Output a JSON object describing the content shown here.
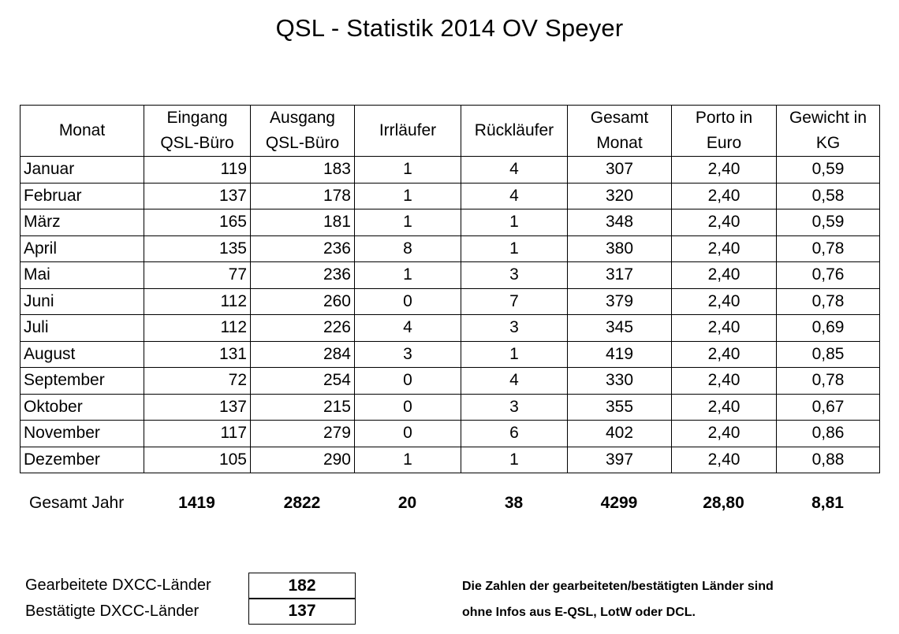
{
  "title": "QSL - Statistik  2014 OV Speyer",
  "table": {
    "headers": [
      [
        "Monat"
      ],
      [
        "Eingang",
        "QSL-Büro"
      ],
      [
        "Ausgang",
        "QSL-Büro"
      ],
      [
        "Irrläufer"
      ],
      [
        "Rückläufer"
      ],
      [
        "Gesamt",
        "Monat"
      ],
      [
        "Porto in",
        "Euro"
      ],
      [
        "Gewicht in",
        "KG"
      ]
    ],
    "rows": [
      [
        "Januar",
        "119",
        "183",
        "1",
        "4",
        "307",
        "2,40",
        "0,59"
      ],
      [
        "Februar",
        "137",
        "178",
        "1",
        "4",
        "320",
        "2,40",
        "0,58"
      ],
      [
        "März",
        "165",
        "181",
        "1",
        "1",
        "348",
        "2,40",
        "0,59"
      ],
      [
        "April",
        "135",
        "236",
        "8",
        "1",
        "380",
        "2,40",
        "0,78"
      ],
      [
        "Mai",
        "77",
        "236",
        "1",
        "3",
        "317",
        "2,40",
        "0,76"
      ],
      [
        "Juni",
        "112",
        "260",
        "0",
        "7",
        "379",
        "2,40",
        "0,78"
      ],
      [
        "Juli",
        "112",
        "226",
        "4",
        "3",
        "345",
        "2,40",
        "0,69"
      ],
      [
        "August",
        "131",
        "284",
        "3",
        "1",
        "419",
        "2,40",
        "0,85"
      ],
      [
        "September",
        "72",
        "254",
        "0",
        "4",
        "330",
        "2,40",
        "0,78"
      ],
      [
        "Oktober",
        "137",
        "215",
        "0",
        "3",
        "355",
        "2,40",
        "0,67"
      ],
      [
        "November",
        "117",
        "279",
        "0",
        "6",
        "402",
        "2,40",
        "0,86"
      ],
      [
        "Dezember",
        "105",
        "290",
        "1",
        "1",
        "397",
        "2,40",
        "0,88"
      ]
    ]
  },
  "totals": {
    "label": "Gesamt  Jahr",
    "values": [
      "1419",
      "2822",
      "20",
      "38",
      "4299",
      "28,80",
      "8,81"
    ]
  },
  "dxcc": {
    "worked_label": "Gearbeitete DXCC-Länder",
    "worked_value": "182",
    "confirmed_label": "Bestätigte DXCC-Länder",
    "confirmed_value": "137"
  },
  "note": {
    "line1": "Die Zahlen der gearbeiteten/bestätigten Länder sind",
    "line2": "ohne Infos aus E-QSL, LotW oder DCL."
  }
}
